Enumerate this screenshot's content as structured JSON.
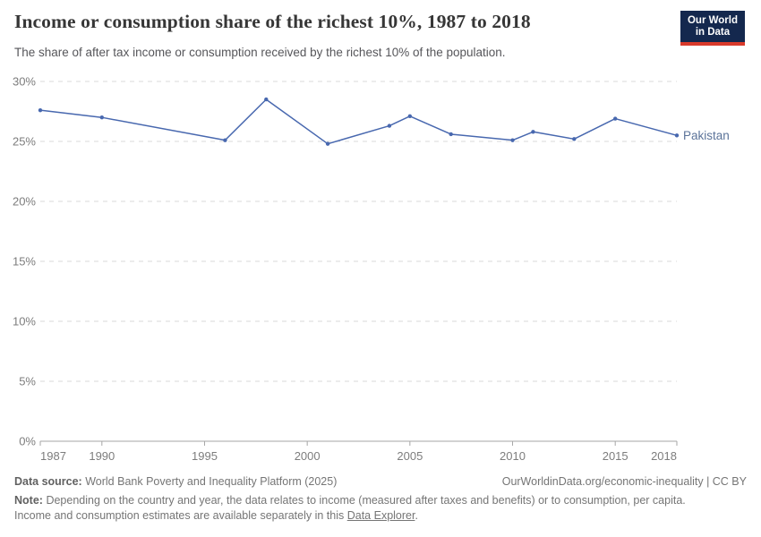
{
  "header": {
    "title": "Income or consumption share of the richest 10%, 1987 to 2018",
    "subtitle": "The share of after tax income or consumption received by the richest 10% of the population."
  },
  "logo": {
    "line1": "Our World",
    "line2": "in Data",
    "bg_color": "#14284e",
    "accent_color": "#d93a2b"
  },
  "chart_data": {
    "type": "line",
    "title": "Income or consumption share of the richest 10%, 1987 to 2018",
    "xlabel": "",
    "ylabel": "",
    "xlim": [
      1987,
      2018
    ],
    "ylim": [
      0,
      30
    ],
    "xticks": [
      1987,
      1990,
      1995,
      2000,
      2005,
      2010,
      2015,
      2018
    ],
    "yticks": [
      0,
      5,
      10,
      15,
      20,
      25,
      30
    ],
    "ytick_suffix": "%",
    "grid": "horizontal-dashed",
    "gridline_color": "#d9d9d9",
    "axis_color": "#a6a6a6",
    "legend_position": "end-of-line-label",
    "series": [
      {
        "name": "Pakistan",
        "color": "#4868af",
        "label_color": "#5b7399",
        "x": [
          1987,
          1990,
          1996,
          1998,
          2001,
          2004,
          2005,
          2007,
          2010,
          2011,
          2013,
          2015,
          2018
        ],
        "values": [
          27.6,
          27.0,
          25.1,
          28.5,
          24.8,
          26.3,
          27.1,
          25.6,
          25.1,
          25.8,
          25.2,
          26.9,
          25.5
        ]
      }
    ]
  },
  "footer": {
    "source_label": "Data source:",
    "source_text": "World Bank Poverty and Inequality Platform (2025)",
    "attribution": "OurWorldinData.org/economic-inequality | CC BY",
    "note_label": "Note:",
    "note_line1": "Depending on the country and year, the data relates to income (measured after taxes and benefits) or to consumption, per capita.",
    "note_line2_prefix": "Income and consumption estimates are available separately in this ",
    "note_link": "Data Explorer",
    "note_suffix": "."
  }
}
